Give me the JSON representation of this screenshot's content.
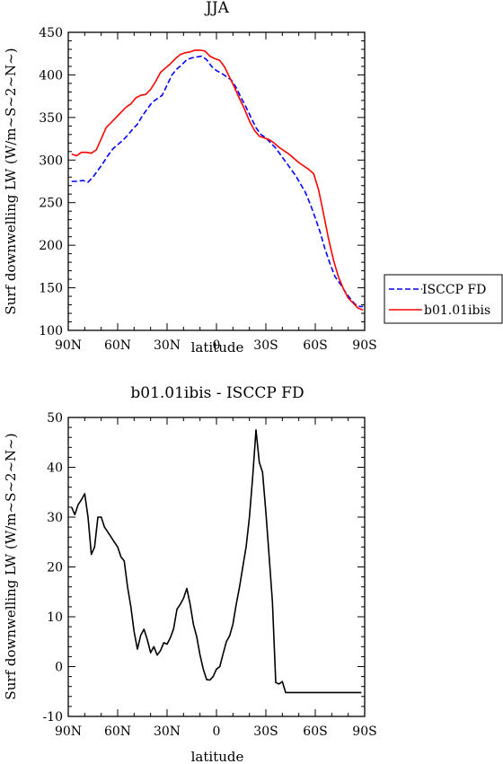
{
  "chart_data": [
    {
      "type": "line",
      "title": "JJA",
      "xlabel": "latitude",
      "ylabel": "Surf downwelling LW (W/m~S~2~N~)",
      "x_ticks": [
        "90N",
        "60N",
        "30N",
        "0",
        "30S",
        "60S",
        "90S"
      ],
      "y_ticks": [
        "100",
        "150",
        "200",
        "250",
        "300",
        "350",
        "400",
        "450"
      ],
      "xlim": [
        -90,
        90
      ],
      "ylim": [
        100,
        450
      ],
      "grid": false,
      "legend_position": "outside-right",
      "series": [
        {
          "name": "ISCCP FD",
          "color": "#0000ff",
          "dash": true,
          "x": [
            -88,
            -85,
            -81,
            -78,
            -75,
            -72,
            -69,
            -66,
            -63,
            -60,
            -57,
            -54,
            -51,
            -48,
            -45,
            -42,
            -39,
            -36,
            -33,
            -30,
            -27,
            -24,
            -21,
            -18,
            -15,
            -12,
            -9,
            -6,
            -3,
            0,
            3,
            6,
            9,
            12,
            15,
            18,
            21,
            24,
            27,
            30,
            33,
            36,
            39,
            42,
            45,
            48,
            51,
            54,
            57,
            60,
            63,
            66,
            69,
            72,
            75,
            78,
            81,
            84,
            87,
            89
          ],
          "values": [
            275,
            275,
            276,
            274,
            280,
            288,
            296,
            305,
            313,
            318,
            323,
            329,
            336,
            342,
            352,
            360,
            368,
            372,
            376,
            388,
            400,
            407,
            412,
            418,
            420,
            421,
            422,
            418,
            410,
            405,
            402,
            398,
            394,
            385,
            373,
            362,
            350,
            338,
            330,
            326,
            320,
            314,
            306,
            298,
            290,
            282,
            272,
            262,
            248,
            232,
            215,
            195,
            178,
            163,
            155,
            146,
            138,
            131,
            128,
            128
          ]
        },
        {
          "name": "b01.01ibis",
          "color": "#ff0000",
          "dash": false,
          "x": [
            -88,
            -85,
            -82,
            -79,
            -76,
            -73,
            -70,
            -67,
            -64,
            -61,
            -58,
            -55,
            -52,
            -49,
            -46,
            -43,
            -40,
            -37,
            -34,
            -31,
            -28,
            -25,
            -22,
            -19,
            -16,
            -13,
            -10,
            -7,
            -4,
            -1,
            2,
            5,
            8,
            11,
            14,
            17,
            20,
            23,
            26,
            29,
            32,
            35,
            38,
            41,
            44,
            47,
            50,
            53,
            56,
            59,
            62,
            65,
            68,
            71,
            74,
            77,
            80,
            83,
            86,
            89
          ],
          "values": [
            307,
            305,
            309,
            309,
            308,
            312,
            325,
            338,
            344,
            350,
            356,
            362,
            366,
            373,
            376,
            377,
            383,
            392,
            403,
            408,
            413,
            419,
            424,
            426,
            427,
            429,
            429,
            428,
            422,
            419,
            417,
            409,
            397,
            385,
            372,
            360,
            346,
            335,
            328,
            326,
            324,
            320,
            315,
            311,
            307,
            302,
            297,
            293,
            289,
            284,
            265,
            237,
            208,
            183,
            163,
            149,
            138,
            132,
            126,
            124
          ]
        }
      ]
    },
    {
      "type": "line",
      "title": "b01.01ibis - ISCCP FD",
      "xlabel": "latitude",
      "ylabel": "Surf downwelling LW (W/m~S~2~N~)",
      "x_ticks": [
        "90N",
        "60N",
        "30N",
        "0",
        "30S",
        "60S",
        "90S"
      ],
      "y_ticks": [
        "-10",
        "0",
        "10",
        "20",
        "30",
        "40",
        "50"
      ],
      "xlim": [
        -90,
        90
      ],
      "ylim": [
        -10,
        50
      ],
      "grid": false,
      "series": [
        {
          "color": "#000000",
          "dash": false,
          "x": [
            -88,
            -86,
            -84,
            -82,
            -80,
            -78,
            -76,
            -74,
            -72,
            -70,
            -68,
            -66,
            -64,
            -62,
            -60,
            -58,
            -56,
            -54,
            -52,
            -50,
            -48,
            -46,
            -44,
            -42,
            -40,
            -38,
            -36,
            -34,
            -32,
            -30,
            -28,
            -26,
            -24,
            -22,
            -20,
            -18,
            -16,
            -14,
            -12,
            -10,
            -8,
            -6,
            -4,
            -2,
            0,
            2,
            4,
            6,
            8,
            10,
            12,
            14,
            16,
            18,
            20,
            22,
            24,
            26,
            28,
            30,
            32,
            34,
            36,
            38,
            40,
            42,
            44,
            46,
            48,
            50,
            52,
            54,
            56,
            58,
            60,
            62,
            64,
            66,
            68,
            70,
            72,
            74,
            76,
            78,
            80,
            82,
            84,
            86,
            88
          ],
          "values": [
            32,
            30.5,
            32.5,
            33.5,
            34.7,
            30,
            22.5,
            24,
            30,
            30,
            28,
            27,
            26,
            25,
            24,
            22,
            21.2,
            16,
            12,
            7,
            3.5,
            6.3,
            7.5,
            5.4,
            2.8,
            4,
            2.3,
            3.2,
            4.8,
            4.5,
            5.8,
            7.6,
            11.5,
            12.5,
            13.7,
            15.7,
            12.5,
            8.5,
            6,
            2.3,
            -0.5,
            -2.6,
            -2.7,
            -2,
            -0.5,
            0,
            2.5,
            5,
            6.2,
            8.5,
            12.5,
            16,
            20,
            24,
            30,
            38,
            47.5,
            41,
            39,
            31,
            22,
            13,
            -3.2,
            -3.5,
            -3,
            -5.2,
            -5.2,
            -5.2,
            -5.2,
            -5.2,
            -5.2,
            -5.2,
            -5.2,
            -5.2,
            -5.2,
            -5.2,
            -5.2,
            -5.2,
            -5.2,
            -5.2,
            -5.2,
            -5.2,
            -5.2,
            -5.2,
            -5.2,
            -5.2,
            -5.2,
            -5.2,
            -5.2
          ]
        }
      ]
    }
  ]
}
